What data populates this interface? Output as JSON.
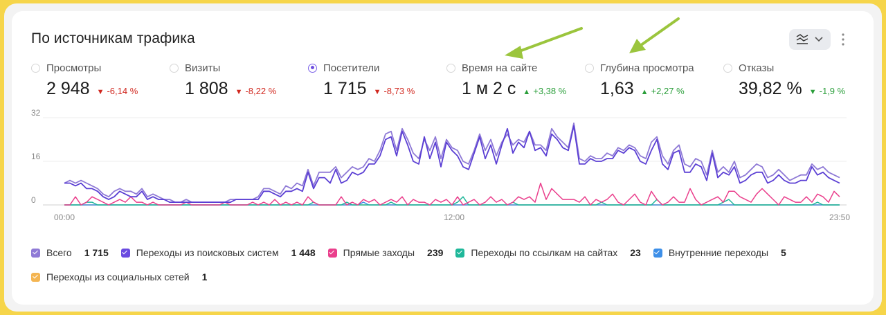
{
  "title": "По источникам трафика",
  "icons": {
    "chart_settings": "chart-lines-icon",
    "dropdown": "chevron-down-icon",
    "more": "more-vertical-icon"
  },
  "metrics": [
    {
      "label": "Просмотры",
      "value": "2 948",
      "delta": "-6,14 %",
      "trend": "down",
      "selected": false
    },
    {
      "label": "Визиты",
      "value": "1 808",
      "delta": "-8,22 %",
      "trend": "down",
      "selected": false
    },
    {
      "label": "Посетители",
      "value": "1 715",
      "delta": "-8,73 %",
      "trend": "down",
      "selected": true
    },
    {
      "label": "Время на сайте",
      "value": "1 м 2 с",
      "delta": "+3,38 %",
      "trend": "up",
      "selected": false
    },
    {
      "label": "Глубина просмотра",
      "value": "1,63",
      "delta": "+2,27 %",
      "trend": "up",
      "selected": false
    },
    {
      "label": "Отказы",
      "value": "39,82 %",
      "delta": "-1,9 %",
      "trend": "up",
      "selected": false
    }
  ],
  "colors": {
    "total": "#8f7ad6",
    "search": "#5b3fd4",
    "direct": "#ea3f8c",
    "links": "#1fb89a",
    "internal": "#3d8fe8",
    "social": "#f4b552",
    "annotation_arrow": "#9bc53d"
  },
  "legend": [
    {
      "name": "Всего",
      "value": "1 715",
      "color": "#8f7ad6"
    },
    {
      "name": "Переходы из поисковых систем",
      "value": "1 448",
      "color": "#6a4be0"
    },
    {
      "name": "Прямые заходы",
      "value": "239",
      "color": "#ea3f8c"
    },
    {
      "name": "Переходы по ссылкам на сайтах",
      "value": "23",
      "color": "#1fb89a"
    },
    {
      "name": "Внутренние переходы",
      "value": "5",
      "color": "#3d8fe8"
    },
    {
      "name": "Переходы из социальных сетей",
      "value": "1",
      "color": "#f4b552"
    }
  ],
  "chart_data": {
    "type": "line",
    "x_ticks": [
      "00:00",
      "12:00",
      "23:50"
    ],
    "ylim": [
      0,
      32
    ],
    "y_ticks": [
      0,
      16,
      32
    ],
    "grid": true,
    "series": [
      {
        "name": "Всего",
        "values": [
          8,
          9,
          8,
          9,
          8,
          7,
          6,
          4,
          3,
          5,
          6,
          5,
          5,
          4,
          6,
          3,
          4,
          3,
          2,
          2,
          1,
          1,
          2,
          1,
          1,
          1,
          1,
          1,
          1,
          1,
          2,
          2,
          2,
          2,
          2,
          3,
          6,
          6,
          5,
          4,
          7,
          6,
          8,
          7,
          13,
          7,
          12,
          12,
          12,
          14,
          10,
          12,
          14,
          13,
          14,
          17,
          16,
          20,
          26,
          27,
          20,
          28,
          24,
          19,
          17,
          24,
          20,
          25,
          17,
          24,
          21,
          20,
          16,
          15,
          20,
          26,
          20,
          24,
          18,
          23,
          26,
          22,
          24,
          23,
          27,
          22,
          22,
          20,
          28,
          25,
          23,
          21,
          30,
          17,
          16,
          18,
          17,
          17,
          19,
          18,
          21,
          20,
          22,
          21,
          18,
          17,
          23,
          25,
          18,
          15,
          20,
          22,
          15,
          14,
          17,
          16,
          11,
          20,
          12,
          14,
          12,
          16,
          10,
          11,
          13,
          15,
          14,
          10,
          11,
          13,
          11,
          9,
          10,
          11,
          11,
          15,
          13,
          14,
          12,
          11,
          10
        ],
        "color": "#8f7ad6"
      },
      {
        "name": "Переходы из поисковых систем",
        "values": [
          8,
          8,
          7,
          8,
          6,
          6,
          5,
          3,
          2,
          3,
          5,
          4,
          3,
          3,
          5,
          2,
          3,
          2,
          2,
          1,
          1,
          1,
          1,
          1,
          1,
          1,
          1,
          1,
          1,
          1,
          1,
          2,
          2,
          2,
          2,
          2,
          5,
          5,
          4,
          3,
          5,
          5,
          6,
          5,
          12,
          6,
          10,
          10,
          8,
          13,
          8,
          9,
          12,
          11,
          12,
          15,
          15,
          18,
          24,
          25,
          18,
          27,
          22,
          16,
          15,
          25,
          17,
          23,
          14,
          23,
          20,
          18,
          14,
          13,
          19,
          25,
          17,
          22,
          15,
          22,
          28,
          19,
          23,
          21,
          27,
          20,
          21,
          18,
          26,
          24,
          21,
          20,
          29,
          15,
          15,
          17,
          16,
          16,
          17,
          17,
          20,
          19,
          21,
          20,
          16,
          15,
          20,
          24,
          15,
          13,
          19,
          20,
          12,
          12,
          15,
          14,
          9,
          19,
          10,
          12,
          11,
          14,
          8,
          9,
          11,
          12,
          12,
          8,
          9,
          11,
          9,
          8,
          8,
          9,
          9,
          14,
          11,
          12,
          10,
          9,
          8
        ],
        "color": "#5b3fd4"
      },
      {
        "name": "Прямые заходы",
        "values": [
          0,
          0,
          3,
          0,
          1,
          3,
          2,
          1,
          0,
          1,
          2,
          1,
          3,
          1,
          1,
          0,
          1,
          0,
          0,
          0,
          0,
          0,
          1,
          0,
          0,
          0,
          0,
          0,
          0,
          1,
          0,
          0,
          0,
          0,
          1,
          0,
          1,
          0,
          2,
          0,
          1,
          0,
          1,
          0,
          3,
          1,
          0,
          0,
          0,
          0,
          3,
          0,
          1,
          0,
          2,
          1,
          2,
          0,
          1,
          2,
          1,
          3,
          0,
          2,
          1,
          1,
          0,
          2,
          1,
          2,
          0,
          3,
          0,
          1,
          2,
          0,
          1,
          3,
          1,
          2,
          0,
          1,
          3,
          2,
          3,
          1,
          8,
          2,
          6,
          4,
          2,
          2,
          2,
          1,
          3,
          0,
          2,
          1,
          2,
          4,
          1,
          0,
          2,
          4,
          1,
          0,
          5,
          2,
          0,
          1,
          3,
          1,
          1,
          6,
          2,
          0,
          1,
          2,
          3,
          1,
          5,
          5,
          3,
          2,
          1,
          4,
          6,
          4,
          2,
          0,
          3,
          2,
          1,
          1,
          3,
          1,
          4,
          3,
          1,
          5,
          3
        ],
        "color": "#ea3f8c"
      },
      {
        "name": "Переходы по ссылкам на сайтах",
        "values": [
          0,
          0,
          0,
          0,
          1,
          1,
          0,
          0,
          0,
          0,
          0,
          0,
          0,
          0,
          0,
          0,
          0,
          0,
          0,
          0,
          0,
          0,
          0,
          0,
          0,
          0,
          0,
          0,
          0,
          0,
          0,
          0,
          0,
          0,
          0,
          0,
          0,
          0,
          0,
          0,
          0,
          0,
          0,
          0,
          0,
          1,
          0,
          0,
          0,
          0,
          0,
          1,
          0,
          0,
          0,
          0,
          0,
          0,
          0,
          1,
          0,
          0,
          0,
          0,
          0,
          0,
          0,
          0,
          0,
          0,
          0,
          1,
          3,
          0,
          0,
          0,
          0,
          0,
          0,
          0,
          0,
          1,
          0,
          0,
          0,
          0,
          0,
          0,
          0,
          0,
          0,
          0,
          0,
          0,
          0,
          0,
          0,
          1,
          0,
          0,
          0,
          0,
          0,
          0,
          0,
          0,
          0,
          2,
          0,
          0,
          0,
          0,
          0,
          0,
          0,
          0,
          0,
          0,
          0,
          1,
          2,
          0,
          0,
          0,
          0,
          0,
          0,
          0,
          0,
          0,
          0,
          0,
          0,
          0,
          0,
          0,
          1,
          0,
          0,
          0,
          0
        ],
        "color": "#1fb89a"
      },
      {
        "name": "Внутренние переходы",
        "values": [
          0,
          0,
          0,
          0,
          0,
          0,
          0,
          0,
          0,
          0,
          0,
          0,
          0,
          0,
          0,
          0,
          0,
          0,
          0,
          0,
          0,
          0,
          0,
          0,
          0,
          0,
          0,
          0,
          0,
          0,
          0,
          0,
          0,
          0,
          0,
          0,
          0,
          0,
          0,
          0,
          0,
          0,
          0,
          0,
          0,
          0,
          0,
          0,
          0,
          0,
          0,
          0,
          0,
          0,
          1,
          0,
          0,
          0,
          0,
          0,
          0,
          0,
          0,
          0,
          0,
          0,
          0,
          0,
          0,
          0,
          0,
          0,
          0,
          0,
          0,
          0,
          0,
          0,
          0,
          0,
          0,
          0,
          0,
          0,
          0,
          0,
          0,
          0,
          0,
          0,
          0,
          0,
          0,
          0,
          0,
          0,
          0,
          0,
          0,
          0,
          0,
          0,
          0,
          0,
          0,
          0,
          0,
          0,
          0,
          0,
          0,
          0,
          0,
          0,
          0,
          0,
          0,
          0,
          0,
          0,
          0,
          0,
          0,
          0,
          0,
          0,
          0,
          0,
          0,
          0,
          0,
          0,
          0,
          0,
          0,
          0,
          0,
          0,
          0,
          0,
          0
        ],
        "color": "#3d8fe8"
      },
      {
        "name": "Переходы из социальных сетей",
        "values": [
          0,
          0,
          0,
          0,
          0,
          0,
          0,
          0,
          0,
          0,
          0,
          0,
          0,
          0,
          0,
          0,
          0,
          0,
          0,
          0,
          0,
          0,
          0,
          0,
          0,
          0,
          0,
          0,
          0,
          0,
          0,
          0,
          0,
          0,
          0,
          0,
          0,
          0,
          0,
          0,
          0,
          0,
          0,
          0,
          0,
          0,
          0,
          0,
          0,
          0,
          0,
          0,
          0,
          0,
          0,
          0,
          0,
          0,
          0,
          0,
          0,
          0,
          0,
          0,
          0,
          0,
          0,
          0,
          0,
          0,
          0,
          0,
          0,
          0,
          0,
          0,
          0,
          0,
          0,
          0,
          0,
          0,
          0,
          0,
          0,
          0,
          0,
          0,
          0,
          0,
          0,
          0,
          0,
          0,
          0,
          0,
          0,
          0,
          0,
          0,
          0,
          0,
          0,
          0,
          0,
          0,
          0,
          0,
          0,
          0,
          0,
          0,
          0,
          0,
          0,
          0,
          0,
          0,
          0,
          0,
          0,
          0,
          0,
          0,
          0,
          0,
          0,
          0,
          0,
          0,
          0,
          0,
          0,
          0,
          0,
          0,
          0,
          0,
          0,
          0,
          0
        ],
        "color": "#f4b552"
      }
    ]
  }
}
